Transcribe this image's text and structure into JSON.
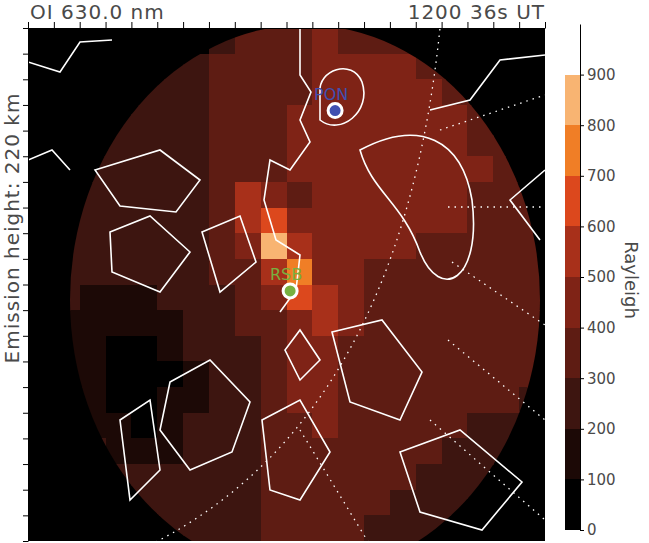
{
  "chart_data": {
    "type": "heatmap",
    "title": "OI 630.0 nm",
    "subtitle": "1200 36s UT",
    "y_label": "Emission height: 220 km",
    "colorbar_label": "Rayleigh",
    "xlim": [
      0,
      20
    ],
    "ylim": [
      0,
      20
    ],
    "xticks": [
      0,
      1,
      2,
      3,
      4,
      5,
      6,
      7,
      8,
      9,
      10,
      11,
      12,
      13,
      14,
      15,
      16,
      17,
      18,
      19,
      20
    ],
    "yticks": [
      0,
      1,
      2,
      3,
      4,
      5,
      6,
      7,
      8,
      9,
      10,
      11,
      12,
      13,
      14,
      15,
      16,
      17,
      18,
      19,
      20
    ],
    "tick_labels": false,
    "cells": [
      [
        null,
        null,
        null,
        null,
        null,
        null,
        null,
        280,
        320,
        360,
        380,
        400,
        390,
        370,
        350,
        null,
        null,
        null,
        null,
        null
      ],
      [
        null,
        null,
        null,
        null,
        null,
        260,
        280,
        300,
        330,
        360,
        390,
        410,
        420,
        410,
        400,
        380,
        360,
        null,
        null,
        null
      ],
      [
        null,
        null,
        null,
        null,
        250,
        260,
        280,
        300,
        320,
        350,
        380,
        420,
        440,
        440,
        430,
        410,
        390,
        370,
        null,
        null
      ],
      [
        null,
        null,
        null,
        240,
        250,
        260,
        280,
        300,
        330,
        360,
        400,
        440,
        460,
        450,
        440,
        420,
        400,
        380,
        360,
        null
      ],
      [
        null,
        null,
        230,
        240,
        250,
        260,
        280,
        300,
        320,
        360,
        400,
        430,
        450,
        460,
        450,
        430,
        410,
        390,
        370,
        null
      ],
      [
        null,
        null,
        230,
        240,
        250,
        260,
        280,
        300,
        330,
        370,
        400,
        420,
        440,
        450,
        450,
        440,
        420,
        400,
        380,
        360
      ],
      [
        null,
        220,
        230,
        240,
        250,
        270,
        290,
        330,
        550,
        420,
        380,
        400,
        420,
        430,
        430,
        420,
        410,
        390,
        370,
        350
      ],
      [
        null,
        220,
        230,
        240,
        250,
        260,
        290,
        350,
        550,
        680,
        450,
        400,
        420,
        420,
        420,
        410,
        400,
        390,
        370,
        350
      ],
      [
        null,
        220,
        220,
        230,
        240,
        250,
        280,
        320,
        420,
        820,
        520,
        420,
        400,
        400,
        400,
        390,
        380,
        370,
        360,
        340
      ],
      [
        null,
        210,
        200,
        200,
        210,
        230,
        260,
        300,
        350,
        520,
        720,
        460,
        400,
        390,
        380,
        380,
        370,
        360,
        350,
        340
      ],
      [
        null,
        200,
        180,
        160,
        170,
        200,
        240,
        280,
        320,
        420,
        620,
        580,
        430,
        390,
        380,
        370,
        360,
        350,
        340,
        330
      ],
      [
        null,
        190,
        150,
        120,
        110,
        160,
        220,
        270,
        300,
        370,
        450,
        500,
        420,
        380,
        370,
        360,
        350,
        340,
        330,
        320
      ],
      [
        null,
        180,
        130,
        80,
        70,
        120,
        200,
        260,
        290,
        340,
        450,
        440,
        380,
        370,
        360,
        350,
        340,
        330,
        320,
        310
      ],
      [
        null,
        180,
        120,
        60,
        50,
        90,
        190,
        250,
        280,
        330,
        430,
        420,
        360,
        350,
        340,
        330,
        330,
        320,
        310,
        300
      ],
      [
        null,
        190,
        140,
        80,
        60,
        100,
        190,
        250,
        280,
        320,
        410,
        420,
        350,
        330,
        320,
        320,
        310,
        300,
        300,
        290
      ],
      [
        null,
        null,
        170,
        120,
        90,
        140,
        210,
        250,
        280,
        320,
        390,
        400,
        340,
        320,
        310,
        300,
        300,
        290,
        290,
        280
      ],
      [
        null,
        null,
        200,
        180,
        160,
        190,
        230,
        260,
        280,
        310,
        370,
        380,
        330,
        310,
        300,
        300,
        290,
        280,
        280,
        null
      ],
      [
        null,
        null,
        null,
        210,
        220,
        230,
        250,
        270,
        290,
        310,
        360,
        360,
        320,
        300,
        300,
        290,
        280,
        280,
        270,
        null
      ],
      [
        null,
        null,
        null,
        null,
        230,
        240,
        250,
        270,
        290,
        310,
        340,
        340,
        310,
        300,
        290,
        280,
        280,
        270,
        null,
        null
      ],
      [
        null,
        null,
        null,
        null,
        null,
        240,
        250,
        260,
        280,
        300,
        320,
        320,
        300,
        290,
        290,
        280,
        270,
        null,
        null,
        null
      ]
    ],
    "colorbar_range": [
      0,
      1000
    ],
    "colorbar_ticks": [
      0,
      100,
      200,
      300,
      400,
      500,
      600,
      700,
      800,
      900
    ],
    "colors": [
      "#000000",
      "#1c0906",
      "#3d1510",
      "#5e1c13",
      "#7f2316",
      "#a8301a",
      "#dc481d",
      "#f07e26",
      "#f8b472",
      "#ffffff"
    ],
    "stations": [
      {
        "name": "PON",
        "x": 11.88,
        "y": 16.78,
        "color": "#4050b0"
      },
      {
        "name": "RSB",
        "x": 10.14,
        "y": 9.75,
        "color": "#78b040"
      }
    ]
  }
}
